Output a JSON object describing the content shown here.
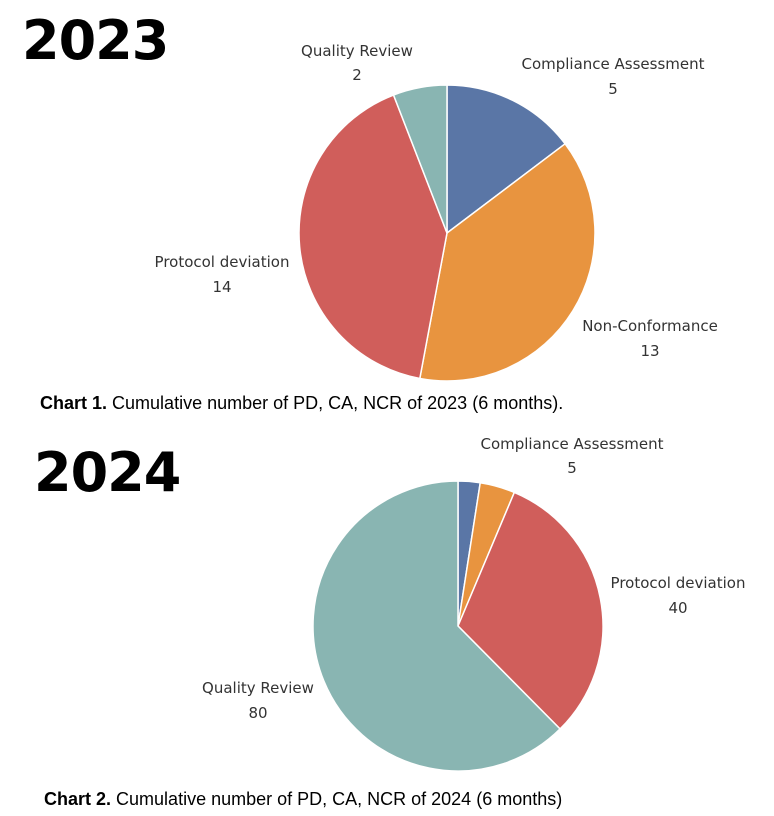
{
  "charts": [
    {
      "year": "2023",
      "caption_prefix": "Chart 1.",
      "caption_text": "Cumulative number of PD, CA, NCR of 2023 (6 months).",
      "chart_data": {
        "type": "pie",
        "slices": [
          {
            "label": "Compliance Assessment",
            "value": 5,
            "color": "#5a76a6"
          },
          {
            "label": "Non-Conformance",
            "value": 13,
            "color": "#e8943f"
          },
          {
            "label": "Protocol deviation",
            "value": 14,
            "color": "#d05e5b"
          },
          {
            "label": "Quality Review",
            "value": 2,
            "color": "#89b5b2"
          }
        ]
      }
    },
    {
      "year": "2024",
      "caption_prefix": "Chart 2.",
      "caption_text": "Cumulative number of PD, CA, NCR of 2024 (6 months)",
      "chart_data": {
        "type": "pie",
        "slices": [
          {
            "label": "",
            "value": null,
            "fraction": 0.0245,
            "color": "#5a76a6"
          },
          {
            "label": "Compliance Assessment",
            "value": 5,
            "color": "#e8943f"
          },
          {
            "label": "Protocol deviation",
            "value": 40,
            "color": "#d05e5b"
          },
          {
            "label": "Quality Review",
            "value": 80,
            "color": "#89b5b2"
          }
        ]
      }
    }
  ]
}
